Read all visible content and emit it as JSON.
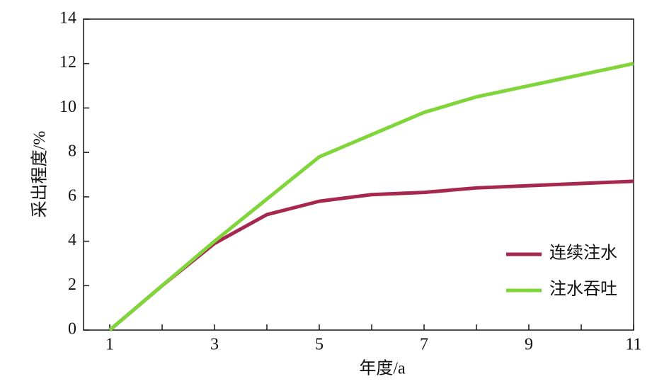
{
  "chart_data": {
    "type": "line",
    "x_label": "年度/a",
    "y_label": "采出程度/%",
    "x": [
      1,
      2,
      3,
      4,
      5,
      6,
      7,
      8,
      9,
      10,
      11
    ],
    "series": [
      {
        "name": "连续注水",
        "color": "#a7284e",
        "values": [
          0,
          2,
          3.9,
          5.2,
          5.8,
          6.1,
          6.2,
          6.4,
          6.5,
          6.6,
          6.7
        ]
      },
      {
        "name": "注水吞吐",
        "color": "#7fd53a",
        "values": [
          0,
          2,
          4,
          5.9,
          7.8,
          8.8,
          9.8,
          10.5,
          11.0,
          11.5,
          12.0
        ]
      }
    ],
    "xlim": [
      0.5,
      11
    ],
    "xticks": [
      1,
      3,
      5,
      7,
      9,
      11
    ],
    "xminorticks": [
      2,
      4,
      6,
      8,
      10
    ],
    "ylim": [
      0,
      14
    ],
    "yticks": [
      0,
      2,
      4,
      6,
      8,
      10,
      12,
      14
    ],
    "legend": "lower right",
    "grid": false
  }
}
